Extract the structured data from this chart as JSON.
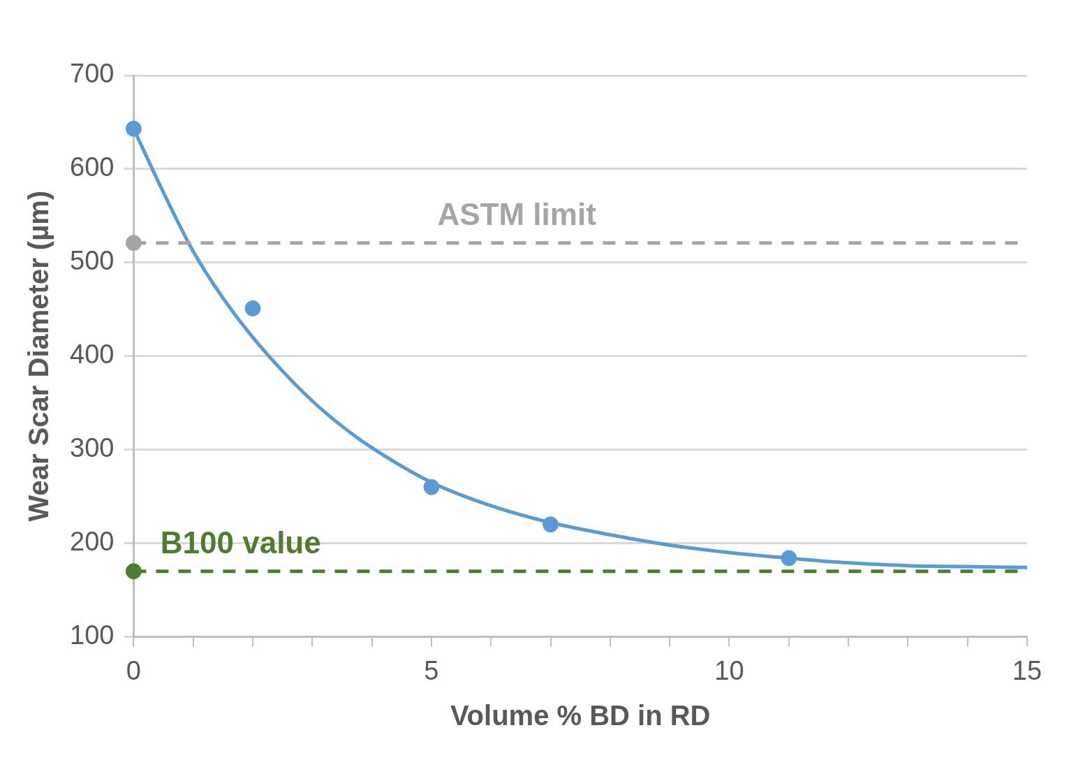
{
  "chart_data": {
    "type": "scatter",
    "xlabel": "Volume % BD in RD",
    "ylabel": "Wear Scar Diameter (µm)",
    "xlim": [
      0,
      15
    ],
    "xticks": [
      0,
      {
        "value": 1,
        "label": null
      },
      {
        "value": 2,
        "label": null
      },
      {
        "value": 3,
        "label": null
      },
      {
        "value": 4,
        "label": null
      },
      5,
      {
        "value": 6,
        "label": null
      },
      {
        "value": 7,
        "label": null
      },
      {
        "value": 8,
        "label": null
      },
      {
        "value": 9,
        "label": null
      },
      10,
      {
        "value": 11,
        "label": null
      },
      {
        "value": 12,
        "label": null
      },
      {
        "value": 13,
        "label": null
      },
      {
        "value": 14,
        "label": null
      },
      15
    ],
    "ylim": [
      100,
      700
    ],
    "yticks": [
      100,
      200,
      300,
      400,
      500,
      600,
      700
    ],
    "grid": "y",
    "legend": false,
    "series": [
      {
        "color": "#a5a5a5",
        "marker": "circle",
        "x": [
          0
        ],
        "values": [
          521
        ]
      },
      {
        "color": "#4e7d2f",
        "marker": "circle",
        "x": [
          0
        ],
        "values": [
          170
        ]
      },
      {
        "color": "#5b9bd5",
        "marker": "circle",
        "x": [
          0,
          2,
          5,
          7,
          11
        ],
        "values": [
          643,
          451,
          260,
          220,
          184
        ]
      },
      {
        "type": "line",
        "color": "#5b9bd5",
        "marker": "none",
        "line_style": "solid",
        "x": [
          0,
          0.5,
          1,
          1.5,
          2,
          2.5,
          3,
          3.5,
          4,
          5,
          6,
          7,
          8,
          9,
          10,
          11,
          12,
          13,
          14,
          15
        ],
        "values": [
          643,
          575,
          512,
          462,
          420,
          384,
          352,
          325,
          302,
          265,
          240,
          222,
          209,
          198,
          190,
          184,
          179,
          176,
          175,
          174
        ]
      }
    ],
    "ref_lines": [
      {
        "axis": "y",
        "value": 521,
        "label": "ASTM limit",
        "color": "#a5a5a5",
        "line_style": "dashed"
      },
      {
        "axis": "y",
        "value": 170,
        "label": "B100 value",
        "color": "#4e7d2f",
        "line_style": "dashed"
      }
    ]
  }
}
